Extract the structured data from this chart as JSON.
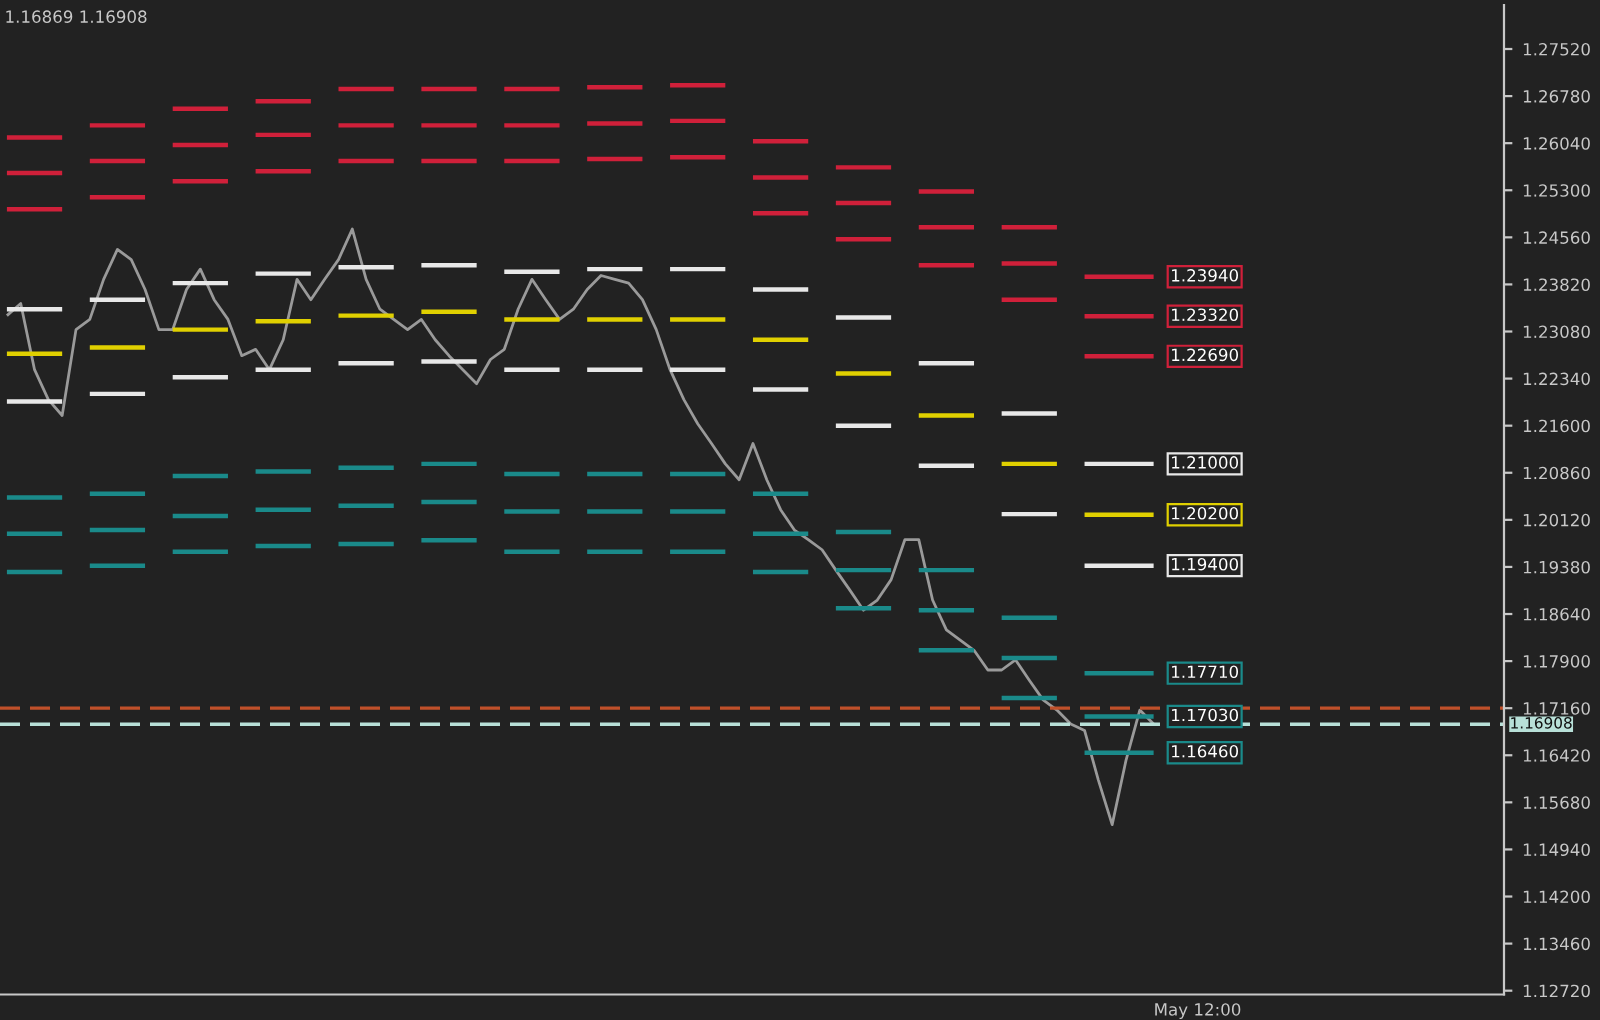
{
  "chart_data": {
    "type": "line",
    "categories": [
      null,
      null,
      null,
      null,
      null,
      null,
      null,
      null,
      null,
      null,
      null,
      null,
      null,
      null,
      null,
      null,
      null,
      null,
      null,
      null,
      null,
      null,
      null,
      null,
      null,
      null,
      null,
      null,
      null,
      null,
      null,
      null,
      null,
      null,
      null,
      null,
      null,
      null,
      null,
      null,
      null,
      null,
      null,
      null,
      null,
      null,
      null,
      null,
      null,
      null,
      null,
      null,
      null,
      null,
      null,
      null,
      null,
      null,
      null,
      null,
      null,
      null,
      null,
      null,
      null,
      null,
      null,
      null,
      null,
      null,
      null,
      null,
      null,
      null,
      null,
      null,
      null,
      null,
      null,
      null,
      null,
      null,
      null,
      null
    ],
    "ylim": [
      1.1266,
      1.2821
    ],
    "yticks": [
      {
        "value": 1.2752,
        "label": "1.27520"
      },
      {
        "value": 1.2678,
        "label": "1.26780"
      },
      {
        "value": 1.2604,
        "label": "1.26040"
      },
      {
        "value": 1.253,
        "label": "1.25300"
      },
      {
        "value": 1.2456,
        "label": "1.24560"
      },
      {
        "value": 1.2382,
        "label": "1.23820"
      },
      {
        "value": 1.2308,
        "label": "1.23080"
      },
      {
        "value": 1.2234,
        "label": "1.22340"
      },
      {
        "value": 1.216,
        "label": "1.21600"
      },
      {
        "value": 1.2086,
        "label": "1.20860"
      },
      {
        "value": 1.2012,
        "label": "1.20120"
      },
      {
        "value": 1.1938,
        "label": "1.19380"
      },
      {
        "value": 1.1864,
        "label": "1.18640"
      },
      {
        "value": 1.179,
        "label": "1.17900"
      },
      {
        "value": 1.1716,
        "label": "1.17160"
      },
      {
        "value": 1.1642,
        "label": "1.16420"
      },
      {
        "value": 1.1568,
        "label": "1.15680"
      },
      {
        "value": 1.1494,
        "label": "1.14940"
      },
      {
        "value": 1.142,
        "label": "1.14200"
      },
      {
        "value": 1.1346,
        "label": "1.13460"
      },
      {
        "value": 1.1272,
        "label": "1.12720"
      }
    ],
    "tick_labels": "y",
    "grid": false,
    "series": [
      {
        "color": "#9a9a9a",
        "values": [
          1.2333,
          1.2352,
          1.2248,
          1.2201,
          1.2176,
          1.2311,
          1.2327,
          1.239,
          1.2437,
          1.2421,
          1.2374,
          1.2311,
          1.2311,
          1.2374,
          1.2406,
          1.2358,
          1.2327,
          1.227,
          1.228,
          1.2248,
          1.2295,
          1.239,
          1.2358,
          1.239,
          1.2421,
          1.2469,
          1.239,
          1.2343,
          1.2327,
          1.2311,
          1.2327,
          1.2295,
          1.227,
          1.2248,
          1.2226,
          1.2264,
          1.228,
          1.2343,
          1.239,
          1.2358,
          1.2327,
          1.2343,
          1.2374,
          1.2396,
          1.239,
          1.2384,
          1.2358,
          1.2311,
          1.2248,
          1.2201,
          1.2163,
          1.2132,
          1.21,
          1.2075,
          1.2132,
          1.2075,
          1.2028,
          1.1996,
          1.1981,
          1.1965,
          1.1933,
          1.1902,
          1.187,
          1.1886,
          1.1918,
          1.1981,
          1.1981,
          1.1886,
          1.1839,
          1.1823,
          1.1807,
          1.1776,
          1.1776,
          1.1792,
          1.176,
          1.1729,
          1.1713,
          1.1691,
          1.1681,
          1.1603,
          1.1533,
          1.1634,
          1.1713,
          1.1691
        ]
      },
      {
        "color": "#d0203a",
        "values": [
          1.2613,
          1.2613,
          1.2613,
          1.2613,
          1.2613,
          null,
          1.2632,
          1.2632,
          1.2632,
          1.2632,
          1.2632,
          null,
          1.2658,
          1.2658,
          1.2658,
          1.2658,
          1.2658,
          null,
          1.267,
          1.267,
          1.267,
          1.267,
          1.267,
          null,
          1.2689,
          1.2689,
          1.2689,
          1.2689,
          1.2689,
          null,
          1.2689,
          1.2689,
          1.2689,
          1.2689,
          1.2689,
          null,
          1.2689,
          1.2689,
          1.2689,
          1.2689,
          1.2689,
          null,
          1.2692,
          1.2692,
          1.2692,
          1.2692,
          1.2692,
          null,
          1.2695,
          1.2695,
          1.2695,
          1.2695,
          1.2695,
          null,
          1.2607,
          1.2607,
          1.2607,
          1.2607,
          1.2607,
          null,
          1.2566,
          1.2566,
          1.2566,
          1.2566,
          1.2566,
          null,
          1.2528,
          1.2528,
          1.2528,
          1.2528,
          1.2528,
          null,
          1.2472,
          1.2472,
          1.2472,
          1.2472,
          1.2472,
          null,
          1.2394,
          1.2394,
          1.2394,
          1.2394,
          1.2394,
          1.2394
        ]
      },
      {
        "color": "#d0203a",
        "values": [
          1.2557,
          1.2557,
          1.2557,
          1.2557,
          1.2557,
          null,
          1.2576,
          1.2576,
          1.2576,
          1.2576,
          1.2576,
          null,
          1.2601,
          1.2601,
          1.2601,
          1.2601,
          1.2601,
          null,
          1.2617,
          1.2617,
          1.2617,
          1.2617,
          1.2617,
          null,
          1.2632,
          1.2632,
          1.2632,
          1.2632,
          1.2632,
          null,
          1.2632,
          1.2632,
          1.2632,
          1.2632,
          1.2632,
          null,
          1.2632,
          1.2632,
          1.2632,
          1.2632,
          1.2632,
          null,
          1.2635,
          1.2635,
          1.2635,
          1.2635,
          1.2635,
          null,
          1.2639,
          1.2639,
          1.2639,
          1.2639,
          1.2639,
          null,
          1.255,
          1.255,
          1.255,
          1.255,
          1.255,
          null,
          1.251,
          1.251,
          1.251,
          1.251,
          1.251,
          null,
          1.2472,
          1.2472,
          1.2472,
          1.2472,
          1.2472,
          null,
          1.2415,
          1.2415,
          1.2415,
          1.2415,
          1.2415,
          null,
          1.2332,
          1.2332,
          1.2332,
          1.2332,
          1.2332,
          1.2332
        ]
      },
      {
        "color": "#d0203a",
        "values": [
          1.25,
          1.25,
          1.25,
          1.25,
          1.25,
          null,
          1.2519,
          1.2519,
          1.2519,
          1.2519,
          1.2519,
          null,
          1.2544,
          1.2544,
          1.2544,
          1.2544,
          1.2544,
          null,
          1.256,
          1.256,
          1.256,
          1.256,
          1.256,
          null,
          1.2576,
          1.2576,
          1.2576,
          1.2576,
          1.2576,
          null,
          1.2576,
          1.2576,
          1.2576,
          1.2576,
          1.2576,
          null,
          1.2576,
          1.2576,
          1.2576,
          1.2576,
          1.2576,
          null,
          1.2579,
          1.2579,
          1.2579,
          1.2579,
          1.2579,
          null,
          1.2582,
          1.2582,
          1.2582,
          1.2582,
          1.2582,
          null,
          1.2494,
          1.2494,
          1.2494,
          1.2494,
          1.2494,
          null,
          1.2453,
          1.2453,
          1.2453,
          1.2453,
          1.2453,
          null,
          1.2412,
          1.2412,
          1.2412,
          1.2412,
          1.2412,
          null,
          1.2358,
          1.2358,
          1.2358,
          1.2358,
          1.2358,
          null,
          1.2269,
          1.2269,
          1.2269,
          1.2269,
          1.2269,
          1.2269
        ]
      },
      {
        "color": "#e8e8e8",
        "values": [
          1.2343,
          1.2343,
          1.2343,
          1.2343,
          1.2343,
          null,
          1.2358,
          1.2358,
          1.2358,
          1.2358,
          1.2358,
          null,
          1.2384,
          1.2384,
          1.2384,
          1.2384,
          1.2384,
          null,
          1.2399,
          1.2399,
          1.2399,
          1.2399,
          1.2399,
          null,
          1.2409,
          1.2409,
          1.2409,
          1.2409,
          1.2409,
          null,
          1.2412,
          1.2412,
          1.2412,
          1.2412,
          1.2412,
          null,
          1.2402,
          1.2402,
          1.2402,
          1.2402,
          1.2402,
          null,
          1.2406,
          1.2406,
          1.2406,
          1.2406,
          1.2406,
          null,
          1.2406,
          1.2406,
          1.2406,
          1.2406,
          1.2406,
          null,
          1.2374,
          1.2374,
          1.2374,
          1.2374,
          1.2374,
          null,
          1.233,
          1.233,
          1.233,
          1.233,
          1.233,
          null,
          1.2258,
          1.2258,
          1.2258,
          1.2258,
          1.2258,
          null,
          1.2179,
          1.2179,
          1.2179,
          1.2179,
          1.2179,
          null,
          1.21,
          1.21,
          1.21,
          1.21,
          1.21,
          1.21
        ]
      },
      {
        "color": "#e0d000",
        "values": [
          1.2273,
          1.2273,
          1.2273,
          1.2273,
          1.2273,
          null,
          1.2283,
          1.2283,
          1.2283,
          1.2283,
          1.2283,
          null,
          1.2311,
          1.2311,
          1.2311,
          1.2311,
          1.2311,
          null,
          1.2324,
          1.2324,
          1.2324,
          1.2324,
          1.2324,
          null,
          1.2333,
          1.2333,
          1.2333,
          1.2333,
          1.2333,
          null,
          1.2339,
          1.2339,
          1.2339,
          1.2339,
          1.2339,
          null,
          1.2327,
          1.2327,
          1.2327,
          1.2327,
          1.2327,
          null,
          1.2327,
          1.2327,
          1.2327,
          1.2327,
          1.2327,
          null,
          1.2327,
          1.2327,
          1.2327,
          1.2327,
          1.2327,
          null,
          1.2295,
          1.2295,
          1.2295,
          1.2295,
          1.2295,
          null,
          1.2242,
          1.2242,
          1.2242,
          1.2242,
          1.2242,
          null,
          1.2176,
          1.2176,
          1.2176,
          1.2176,
          1.2176,
          null,
          1.21,
          1.21,
          1.21,
          1.21,
          1.21,
          null,
          1.202,
          1.202,
          1.202,
          1.202,
          1.202,
          1.202
        ]
      },
      {
        "color": "#e8e8e8",
        "values": [
          1.2198,
          1.2198,
          1.2198,
          1.2198,
          1.2198,
          null,
          1.221,
          1.221,
          1.221,
          1.221,
          1.221,
          null,
          1.2236,
          1.2236,
          1.2236,
          1.2236,
          1.2236,
          null,
          1.2248,
          1.2248,
          1.2248,
          1.2248,
          1.2248,
          null,
          1.2258,
          1.2258,
          1.2258,
          1.2258,
          1.2258,
          null,
          1.2261,
          1.2261,
          1.2261,
          1.2261,
          1.2261,
          null,
          1.2248,
          1.2248,
          1.2248,
          1.2248,
          1.2248,
          null,
          1.2248,
          1.2248,
          1.2248,
          1.2248,
          1.2248,
          null,
          1.2248,
          1.2248,
          1.2248,
          1.2248,
          1.2248,
          null,
          1.2217,
          1.2217,
          1.2217,
          1.2217,
          1.2217,
          null,
          1.216,
          1.216,
          1.216,
          1.216,
          1.216,
          null,
          1.2097,
          1.2097,
          1.2097,
          1.2097,
          1.2097,
          null,
          1.2021,
          1.2021,
          1.2021,
          1.2021,
          1.2021,
          null,
          1.194,
          1.194,
          1.194,
          1.194,
          1.194,
          1.194
        ]
      },
      {
        "color": "#1a8a8a",
        "values": [
          1.2047,
          1.2047,
          1.2047,
          1.2047,
          1.2047,
          null,
          1.2053,
          1.2053,
          1.2053,
          1.2053,
          1.2053,
          null,
          1.2081,
          1.2081,
          1.2081,
          1.2081,
          1.2081,
          null,
          1.2088,
          1.2088,
          1.2088,
          1.2088,
          1.2088,
          null,
          1.2094,
          1.2094,
          1.2094,
          1.2094,
          1.2094,
          null,
          1.21,
          1.21,
          1.21,
          1.21,
          1.21,
          null,
          1.2084,
          1.2084,
          1.2084,
          1.2084,
          1.2084,
          null,
          1.2084,
          1.2084,
          1.2084,
          1.2084,
          1.2084,
          null,
          1.2084,
          1.2084,
          1.2084,
          1.2084,
          1.2084,
          null,
          1.2053,
          1.2053,
          1.2053,
          1.2053,
          1.2053,
          null,
          1.1993,
          1.1993,
          1.1993,
          1.1993,
          1.1993,
          null,
          1.1933,
          1.1933,
          1.1933,
          1.1933,
          1.1933,
          null,
          1.1858,
          1.1858,
          1.1858,
          1.1858,
          1.1858,
          null,
          1.1771,
          1.1771,
          1.1771,
          1.1771,
          1.1771,
          1.1771
        ]
      },
      {
        "color": "#1a8a8a",
        "values": [
          1.199,
          1.199,
          1.199,
          1.199,
          1.199,
          null,
          1.1996,
          1.1996,
          1.1996,
          1.1996,
          1.1996,
          null,
          1.2018,
          1.2018,
          1.2018,
          1.2018,
          1.2018,
          null,
          1.2028,
          1.2028,
          1.2028,
          1.2028,
          1.2028,
          null,
          1.2034,
          1.2034,
          1.2034,
          1.2034,
          1.2034,
          null,
          1.204,
          1.204,
          1.204,
          1.204,
          1.204,
          null,
          1.2025,
          1.2025,
          1.2025,
          1.2025,
          1.2025,
          null,
          1.2025,
          1.2025,
          1.2025,
          1.2025,
          1.2025,
          null,
          1.2025,
          1.2025,
          1.2025,
          1.2025,
          1.2025,
          null,
          1.199,
          1.199,
          1.199,
          1.199,
          1.199,
          null,
          1.1933,
          1.1933,
          1.1933,
          1.1933,
          1.1933,
          null,
          1.187,
          1.187,
          1.187,
          1.187,
          1.187,
          null,
          1.1795,
          1.1795,
          1.1795,
          1.1795,
          1.1795,
          null,
          1.1703,
          1.1703,
          1.1703,
          1.1703,
          1.1703,
          1.1703
        ]
      },
      {
        "color": "#1a8a8a",
        "values": [
          1.193,
          1.193,
          1.193,
          1.193,
          1.193,
          null,
          1.194,
          1.194,
          1.194,
          1.194,
          1.194,
          null,
          1.1962,
          1.1962,
          1.1962,
          1.1962,
          1.1962,
          null,
          1.1971,
          1.1971,
          1.1971,
          1.1971,
          1.1971,
          null,
          1.1974,
          1.1974,
          1.1974,
          1.1974,
          1.1974,
          null,
          1.198,
          1.198,
          1.198,
          1.198,
          1.198,
          null,
          1.1962,
          1.1962,
          1.1962,
          1.1962,
          1.1962,
          null,
          1.1962,
          1.1962,
          1.1962,
          1.1962,
          1.1962,
          null,
          1.1962,
          1.1962,
          1.1962,
          1.1962,
          1.1962,
          null,
          1.193,
          1.193,
          1.193,
          1.193,
          1.193,
          null,
          1.1873,
          1.1873,
          1.1873,
          1.1873,
          1.1873,
          null,
          1.1807,
          1.1807,
          1.1807,
          1.1807,
          1.1807,
          null,
          1.1732,
          1.1732,
          1.1732,
          1.1732,
          1.1732,
          null,
          1.1646,
          1.1646,
          1.1646,
          1.1646,
          1.1646,
          1.1646
        ]
      }
    ],
    "ref_lines": [
      {
        "axis": "y",
        "value": 1.16908,
        "label": "1.16908",
        "color": "#b8e0d8",
        "line_style": "dashed"
      },
      {
        "axis": "y",
        "value": 1.1716,
        "color": "#c0502a",
        "line_style": "dashed"
      }
    ],
    "annotations": [
      "1.16869 1.16908",
      "May 12:00",
      "1.23940",
      "1.23320",
      "1.22690",
      "1.21000",
      "1.20200",
      "1.19400",
      "1.17710",
      "1.17030",
      "1.16460"
    ]
  }
}
